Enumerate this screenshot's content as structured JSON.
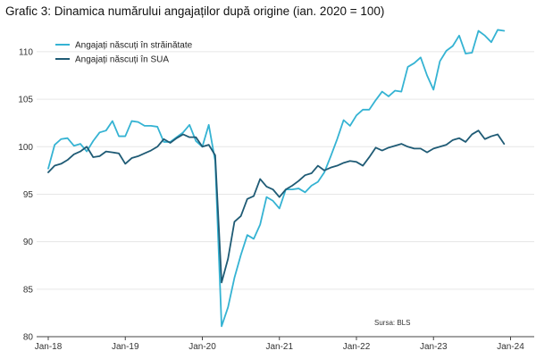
{
  "chart_data": {
    "type": "line",
    "title": "Grafic 3: Dinamica numărului angajaților după origine (ian. 2020 = 100)",
    "xlabel": "",
    "ylabel": "",
    "source": "Sursa: BLS",
    "ylim": [
      80,
      113
    ],
    "yticks": [
      80,
      85,
      90,
      95,
      100,
      105,
      110
    ],
    "x_start": "2018-01",
    "x_end": "2024-01",
    "xtick_labels": [
      "Jan-18",
      "Jan-19",
      "Jan-20",
      "Jan-21",
      "Jan-22",
      "Jan-23",
      "Jan-24"
    ],
    "grid": "horizontal",
    "legend_position": "top-left",
    "series": [
      {
        "name": "Angajați născuți în străinătate",
        "color": "#35b3d3",
        "values": [
          97.7,
          100.2,
          100.8,
          100.9,
          100.1,
          100.3,
          99.5,
          100.6,
          101.5,
          101.7,
          102.7,
          101.1,
          101.1,
          102.7,
          102.6,
          102.2,
          102.2,
          102.1,
          100.5,
          100.5,
          101.0,
          101.5,
          102.3,
          100.6,
          100.0,
          102.3,
          98.5,
          81.1,
          83.1,
          86.2,
          88.6,
          90.7,
          90.3,
          91.8,
          94.7,
          94.3,
          93.5,
          95.5,
          95.5,
          95.6,
          95.2,
          95.9,
          96.3,
          97.3,
          99.0,
          100.8,
          102.8,
          102.2,
          103.3,
          103.9,
          103.9,
          104.9,
          105.8,
          105.3,
          105.9,
          105.8,
          108.4,
          108.8,
          109.4,
          107.5,
          106.0,
          109.0,
          110.1,
          110.6,
          111.7,
          109.8,
          109.9,
          112.2,
          111.7,
          111.0,
          112.3,
          112.2
        ]
      },
      {
        "name": "Angajați născuți în SUA",
        "color": "#1f5b75",
        "values": [
          97.3,
          98.0,
          98.2,
          98.6,
          99.2,
          99.5,
          100.0,
          98.9,
          99.0,
          99.5,
          99.4,
          99.3,
          98.2,
          98.8,
          99.0,
          99.3,
          99.6,
          100.0,
          100.8,
          100.4,
          100.9,
          101.3,
          101.0,
          101.0,
          100.0,
          100.2,
          99.1,
          85.7,
          88.2,
          92.1,
          92.7,
          94.5,
          94.8,
          96.6,
          95.8,
          95.5,
          94.7,
          95.5,
          95.9,
          96.4,
          97.0,
          97.2,
          98.0,
          97.5,
          97.8,
          98.0,
          98.3,
          98.5,
          98.4,
          98.0,
          98.9,
          99.9,
          99.6,
          99.9,
          100.1,
          100.3,
          100.0,
          99.8,
          99.8,
          99.4,
          99.8,
          100.0,
          100.2,
          100.7,
          100.9,
          100.5,
          101.3,
          101.7,
          100.8,
          101.1,
          101.3,
          100.3
        ]
      }
    ]
  }
}
